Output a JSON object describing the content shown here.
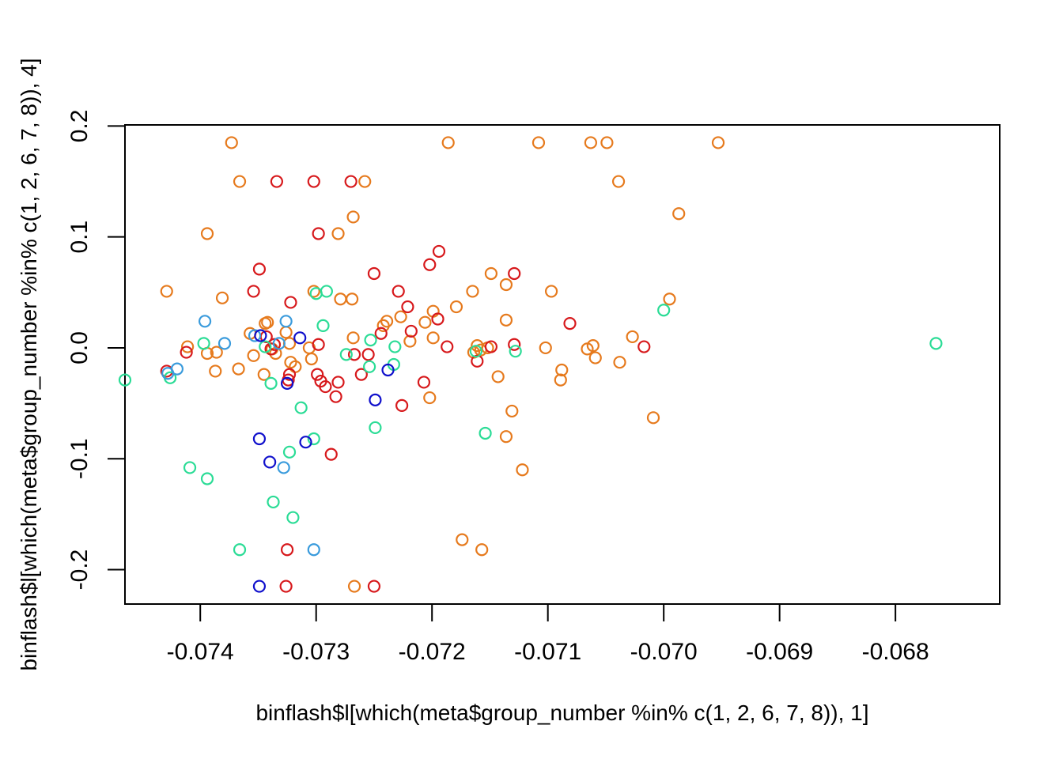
{
  "chart_data": {
    "type": "scatter",
    "xlabel": "binflash$l[which(meta$group_number %in% c(1, 2, 6, 7, 8)), 1]",
    "ylabel": "binflash$l[which(meta$group_number %in% c(1, 2, 6, 7, 8)), 4]",
    "xlim": [
      -0.07465,
      -0.0671
    ],
    "ylim": [
      -0.231,
      0.201
    ],
    "x_ticks": [
      {
        "value": -0.074,
        "label": "-0.074"
      },
      {
        "value": -0.073,
        "label": "-0.073"
      },
      {
        "value": -0.072,
        "label": "-0.072"
      },
      {
        "value": -0.071,
        "label": "-0.071"
      },
      {
        "value": -0.07,
        "label": "-0.070"
      },
      {
        "value": -0.069,
        "label": "-0.069"
      },
      {
        "value": -0.068,
        "label": "-0.068"
      }
    ],
    "y_ticks": [
      {
        "value": -0.2,
        "label": "-0.2"
      },
      {
        "value": -0.1,
        "label": "-0.1"
      },
      {
        "value": 0.0,
        "label": "0.0"
      },
      {
        "value": 0.1,
        "label": "0.1"
      },
      {
        "value": 0.2,
        "label": "0.2"
      }
    ],
    "grid": false,
    "legend": "none",
    "marker": "open-circle",
    "series": [
      {
        "color": "#e67a1d",
        "points": [
          [
            -0.07373,
            0.185
          ],
          [
            -0.07186,
            0.185
          ],
          [
            -0.07108,
            0.185
          ],
          [
            -0.07063,
            0.185
          ],
          [
            -0.07049,
            0.185
          ],
          [
            -0.06953,
            0.185
          ],
          [
            -0.07366,
            0.15
          ],
          [
            -0.07258,
            0.15
          ],
          [
            -0.07039,
            0.15
          ],
          [
            -0.07268,
            0.118
          ],
          [
            -0.06987,
            0.121
          ],
          [
            -0.07394,
            0.103
          ],
          [
            -0.07281,
            0.103
          ],
          [
            -0.07429,
            0.051
          ],
          [
            -0.07381,
            0.045
          ],
          [
            -0.07302,
            0.051
          ],
          [
            -0.07279,
            0.044
          ],
          [
            -0.07269,
            0.044
          ],
          [
            -0.07165,
            0.051
          ],
          [
            -0.07149,
            0.067
          ],
          [
            -0.07136,
            0.057
          ],
          [
            -0.07097,
            0.051
          ],
          [
            -0.06995,
            0.044
          ],
          [
            -0.07357,
            0.013
          ],
          [
            -0.07344,
            0.022
          ],
          [
            -0.07342,
            0.023
          ],
          [
            -0.07326,
            0.014
          ],
          [
            -0.07323,
            0.004
          ],
          [
            -0.07268,
            0.009
          ],
          [
            -0.07242,
            0.02
          ],
          [
            -0.07239,
            0.024
          ],
          [
            -0.07227,
            0.028
          ],
          [
            -0.07219,
            0.006
          ],
          [
            -0.07206,
            0.023
          ],
          [
            -0.07199,
            0.033
          ],
          [
            -0.07199,
            0.009
          ],
          [
            -0.07179,
            0.037
          ],
          [
            -0.07136,
            0.025
          ],
          [
            -0.07027,
            0.01
          ],
          [
            -0.07411,
            0.001
          ],
          [
            -0.07394,
            -0.005
          ],
          [
            -0.07386,
            -0.004
          ],
          [
            -0.07354,
            -0.007
          ],
          [
            -0.07338,
            -0.001
          ],
          [
            -0.07335,
            -0.005
          ],
          [
            -0.07322,
            -0.013
          ],
          [
            -0.07318,
            -0.017
          ],
          [
            -0.07306,
            0.0
          ],
          [
            -0.07304,
            -0.01
          ],
          [
            -0.07164,
            -0.004
          ],
          [
            -0.07161,
            0.002
          ],
          [
            -0.07158,
            -0.002
          ],
          [
            -0.07152,
            0.0
          ],
          [
            -0.07102,
            0.0
          ],
          [
            -0.07066,
            -0.001
          ],
          [
            -0.07061,
            0.002
          ],
          [
            -0.07059,
            -0.009
          ],
          [
            -0.07038,
            -0.013
          ],
          [
            -0.07387,
            -0.021
          ],
          [
            -0.07367,
            -0.019
          ],
          [
            -0.07345,
            -0.024
          ],
          [
            -0.07143,
            -0.026
          ],
          [
            -0.07088,
            -0.02
          ],
          [
            -0.07089,
            -0.029
          ],
          [
            -0.07202,
            -0.045
          ],
          [
            -0.07131,
            -0.057
          ],
          [
            -0.07009,
            -0.063
          ],
          [
            -0.07136,
            -0.08
          ],
          [
            -0.07122,
            -0.11
          ],
          [
            -0.07174,
            -0.173
          ],
          [
            -0.07157,
            -0.182
          ],
          [
            -0.07267,
            -0.215
          ]
        ]
      },
      {
        "color": "#d7191c",
        "points": [
          [
            -0.07334,
            0.15
          ],
          [
            -0.07302,
            0.15
          ],
          [
            -0.0727,
            0.15
          ],
          [
            -0.07298,
            0.103
          ],
          [
            -0.07349,
            0.071
          ],
          [
            -0.07354,
            0.051
          ],
          [
            -0.07322,
            0.041
          ],
          [
            -0.0725,
            0.067
          ],
          [
            -0.07202,
            0.075
          ],
          [
            -0.07194,
            0.087
          ],
          [
            -0.07129,
            0.067
          ],
          [
            -0.07229,
            0.051
          ],
          [
            -0.07221,
            0.037
          ],
          [
            -0.07195,
            0.026
          ],
          [
            -0.07218,
            0.015
          ],
          [
            -0.07244,
            0.013
          ],
          [
            -0.07081,
            0.022
          ],
          [
            -0.07343,
            0.01
          ],
          [
            -0.07336,
            0.003
          ],
          [
            -0.07339,
            -0.001
          ],
          [
            -0.07298,
            0.003
          ],
          [
            -0.07187,
            0.001
          ],
          [
            -0.07149,
            0.001
          ],
          [
            -0.07129,
            0.003
          ],
          [
            -0.07017,
            0.001
          ],
          [
            -0.07429,
            -0.021
          ],
          [
            -0.07412,
            -0.004
          ],
          [
            -0.07323,
            -0.024
          ],
          [
            -0.07324,
            -0.029
          ],
          [
            -0.07299,
            -0.024
          ],
          [
            -0.07261,
            -0.024
          ],
          [
            -0.07255,
            -0.006
          ],
          [
            -0.07267,
            -0.006
          ],
          [
            -0.07161,
            -0.012
          ],
          [
            -0.07296,
            -0.03
          ],
          [
            -0.07292,
            -0.035
          ],
          [
            -0.07283,
            -0.044
          ],
          [
            -0.07281,
            -0.031
          ],
          [
            -0.07207,
            -0.031
          ],
          [
            -0.07226,
            -0.052
          ],
          [
            -0.07287,
            -0.096
          ],
          [
            -0.07325,
            -0.182
          ],
          [
            -0.07326,
            -0.215
          ],
          [
            -0.0725,
            -0.215
          ]
        ]
      },
      {
        "color": "#2bdc96",
        "points": [
          [
            -0.07465,
            -0.029
          ],
          [
            -0.07426,
            -0.027
          ],
          [
            -0.07409,
            -0.108
          ],
          [
            -0.07397,
            0.004
          ],
          [
            -0.07394,
            -0.118
          ],
          [
            -0.07366,
            -0.182
          ],
          [
            -0.07344,
            0.001
          ],
          [
            -0.07339,
            -0.032
          ],
          [
            -0.07337,
            -0.139
          ],
          [
            -0.07323,
            -0.094
          ],
          [
            -0.0732,
            -0.153
          ],
          [
            -0.07313,
            -0.054
          ],
          [
            -0.07302,
            -0.082
          ],
          [
            -0.073,
            0.049
          ],
          [
            -0.07294,
            0.02
          ],
          [
            -0.07291,
            0.051
          ],
          [
            -0.07274,
            -0.006
          ],
          [
            -0.07253,
            0.007
          ],
          [
            -0.07254,
            -0.017
          ],
          [
            -0.07249,
            -0.072
          ],
          [
            -0.07233,
            -0.015
          ],
          [
            -0.07232,
            0.001
          ],
          [
            -0.07162,
            -0.003
          ],
          [
            -0.07154,
            -0.077
          ],
          [
            -0.07128,
            -0.003
          ],
          [
            -0.07,
            0.034
          ],
          [
            -0.06765,
            0.004
          ]
        ]
      },
      {
        "color": "#3a9bdc",
        "points": [
          [
            -0.0742,
            -0.019
          ],
          [
            -0.07428,
            -0.023
          ],
          [
            -0.07396,
            0.024
          ],
          [
            -0.07379,
            0.004
          ],
          [
            -0.07353,
            0.011
          ],
          [
            -0.07326,
            0.024
          ],
          [
            -0.07332,
            0.004
          ],
          [
            -0.07328,
            -0.108
          ],
          [
            -0.07302,
            -0.182
          ]
        ]
      },
      {
        "color": "#1010cc",
        "points": [
          [
            -0.07348,
            0.011
          ],
          [
            -0.07314,
            0.009
          ],
          [
            -0.07325,
            -0.032
          ],
          [
            -0.07349,
            -0.082
          ],
          [
            -0.0734,
            -0.103
          ],
          [
            -0.07309,
            -0.085
          ],
          [
            -0.07249,
            -0.047
          ],
          [
            -0.07238,
            -0.02
          ],
          [
            -0.07349,
            -0.215
          ]
        ]
      }
    ]
  }
}
